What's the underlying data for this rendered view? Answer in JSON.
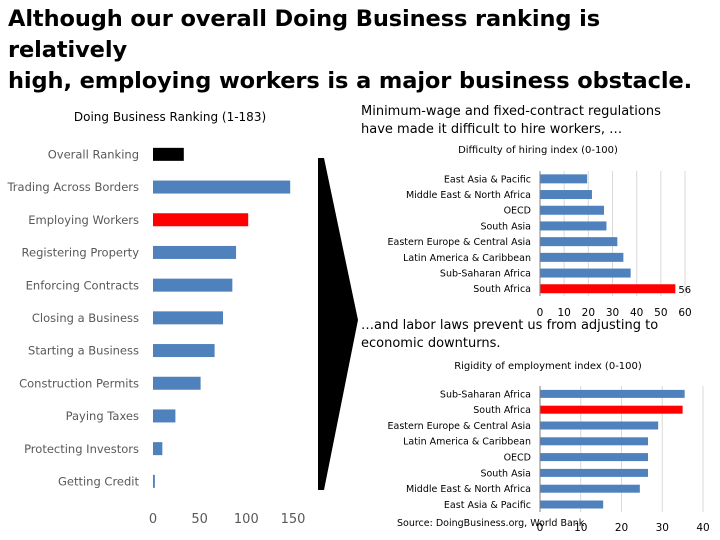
{
  "headline": {
    "line1": "Although our overall Doing Business ranking is relatively",
    "line2": "high, employing workers is a major business obstacle."
  },
  "caption_right_top": {
    "line1": "Minimum-wage and fixed-contract regulations",
    "line2": "have made it difficult to hire workers, …"
  },
  "caption_right_bottom": {
    "line1": "…and labor laws prevent us from adjusting to",
    "line2": "economic downturns."
  },
  "source": "Source: DoingBusiness.org, World Bank",
  "colors": {
    "bar": "#4F81BD",
    "highlight": "#FF0000",
    "overall": "#000000",
    "arrow": "#000000",
    "grid": "#D9D9D9"
  },
  "chart_data": [
    {
      "type": "bar",
      "orientation": "horizontal",
      "title": "Doing Business Ranking (1-183)",
      "categories": [
        "Overall Ranking",
        "Trading Across Borders",
        "Employing Workers",
        "Registering Property",
        "Enforcing Contracts",
        "Closing a Business",
        "Starting a Business",
        "Construction Permits",
        "Paying Taxes",
        "Protecting Investors",
        "Getting Credit"
      ],
      "values": [
        33,
        147,
        102,
        89,
        85,
        75,
        66,
        51,
        24,
        10,
        2
      ],
      "bar_colors": [
        "#000000",
        "#4F81BD",
        "#FF0000",
        "#4F81BD",
        "#4F81BD",
        "#4F81BD",
        "#4F81BD",
        "#4F81BD",
        "#4F81BD",
        "#4F81BD",
        "#4F81BD"
      ],
      "xticks": [
        0,
        50,
        100,
        150
      ],
      "xlim": [
        0,
        150
      ],
      "grid": false
    },
    {
      "type": "bar",
      "orientation": "horizontal",
      "title": "Difficulty of hiring index (0-100)",
      "categories": [
        "East Asia & Pacific",
        "Middle East & North Africa",
        "OECD",
        "South Asia",
        "Eastern Europe & Central Asia",
        "Latin America & Caribbean",
        "Sub-Saharan Africa",
        "South Africa"
      ],
      "values": [
        19.5,
        21.5,
        26.5,
        27.5,
        32,
        34.5,
        37.5,
        56
      ],
      "bar_colors": [
        "#4F81BD",
        "#4F81BD",
        "#4F81BD",
        "#4F81BD",
        "#4F81BD",
        "#4F81BD",
        "#4F81BD",
        "#FF0000"
      ],
      "data_labels": [
        "",
        "",
        "",
        "",
        "",
        "",
        "",
        "56"
      ],
      "xticks": [
        0,
        10,
        20,
        30,
        40,
        50,
        60
      ],
      "xlim": [
        0,
        60
      ],
      "grid": true
    },
    {
      "type": "bar",
      "orientation": "horizontal",
      "title": "Rigidity of employment index (0-100)",
      "categories": [
        "Sub-Saharan Africa",
        "South Africa",
        "Eastern Europe & Central Asia",
        "Latin America & Caribbean",
        "OECD",
        "South Asia",
        "Middle East & North Africa",
        "East Asia & Pacific"
      ],
      "values": [
        35.5,
        35,
        29,
        26.5,
        26.5,
        26.5,
        24.5,
        15.5
      ],
      "bar_colors": [
        "#4F81BD",
        "#FF0000",
        "#4F81BD",
        "#4F81BD",
        "#4F81BD",
        "#4F81BD",
        "#4F81BD",
        "#4F81BD"
      ],
      "xticks": [
        0,
        10,
        20,
        30,
        40
      ],
      "xlim": [
        0,
        40
      ],
      "grid": true
    }
  ]
}
